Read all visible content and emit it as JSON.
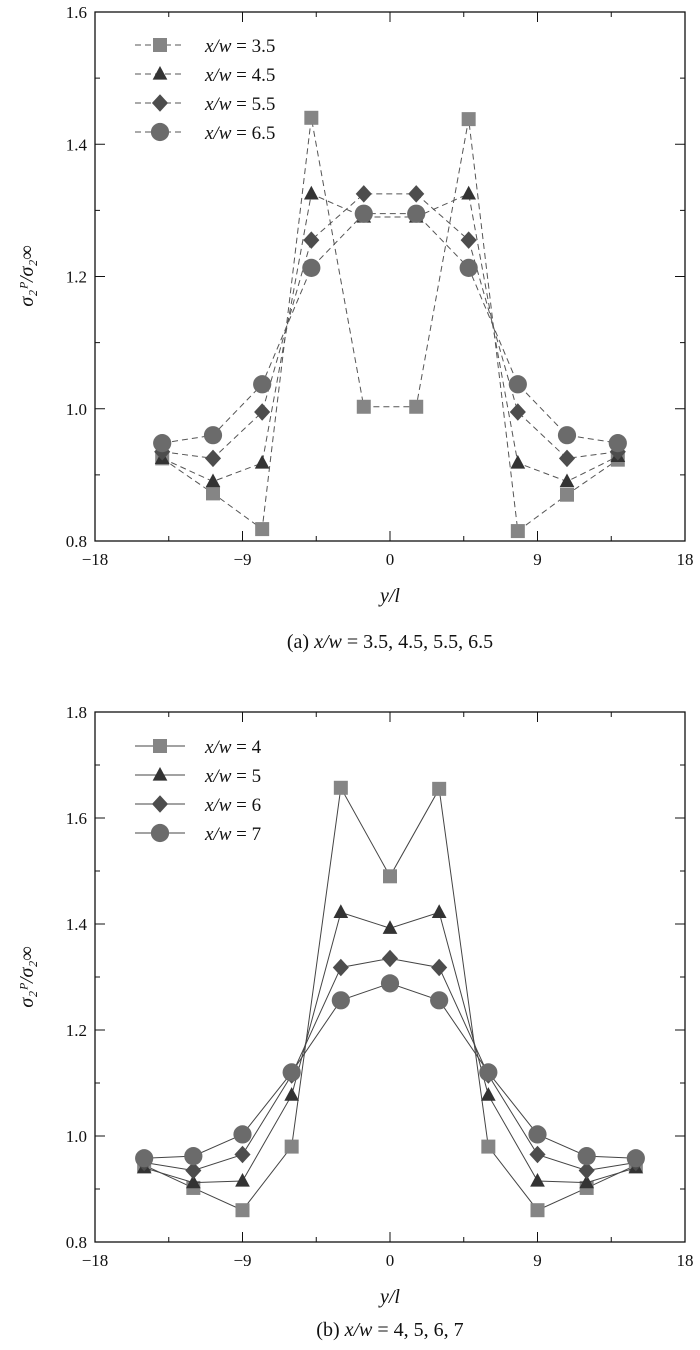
{
  "chart_data": [
    {
      "type": "line",
      "line_style": "dashed",
      "caption_label": "(a)",
      "caption_var": "x/w",
      "caption_values": " = 3.5, 4.5, 5.5, 6.5",
      "xlabel": "y/l",
      "ylabel": "σ₂ᴾ/σ₂∞",
      "xlim": [
        -18,
        18
      ],
      "ylim": [
        0.8,
        1.6
      ],
      "xticks": [
        -18,
        -9,
        0,
        9,
        18
      ],
      "xtick_labels": [
        "−18",
        "−9",
        "0",
        "9",
        "18"
      ],
      "yticks": [
        0.8,
        1.0,
        1.2,
        1.4,
        1.6
      ],
      "ytick_labels": [
        "0.8",
        "1.0",
        "1.2",
        "1.4",
        "1.6"
      ],
      "legend_position": "top-left",
      "series": [
        {
          "name": "x/w = 3.5",
          "label_var": "x/w",
          "label_value": " = 3.5",
          "marker": "square",
          "color": "#858585",
          "x": [
            -13.9,
            -10.8,
            -7.8,
            -4.8,
            -1.6,
            1.6,
            4.8,
            7.8,
            10.8,
            13.9
          ],
          "y": [
            0.925,
            0.872,
            0.818,
            1.44,
            1.003,
            1.003,
            1.438,
            0.815,
            0.87,
            0.923
          ]
        },
        {
          "name": "x/w = 4.5",
          "label_var": "x/w",
          "label_value": " = 4.5",
          "marker": "triangle",
          "color": "#333333",
          "x": [
            -13.9,
            -10.8,
            -7.8,
            -4.8,
            -1.6,
            1.6,
            4.8,
            7.8,
            10.8,
            13.9
          ],
          "y": [
            0.925,
            0.89,
            0.918,
            1.325,
            1.29,
            1.29,
            1.325,
            0.918,
            0.89,
            0.928
          ]
        },
        {
          "name": "x/w = 5.5",
          "label_var": "x/w",
          "label_value": " = 5.5",
          "marker": "diamond",
          "color": "#4d4d4d",
          "x": [
            -13.9,
            -10.8,
            -7.8,
            -4.8,
            -1.6,
            1.6,
            4.8,
            7.8,
            10.8,
            13.9
          ],
          "y": [
            0.935,
            0.925,
            0.995,
            1.255,
            1.325,
            1.325,
            1.255,
            0.995,
            0.925,
            0.935
          ]
        },
        {
          "name": "x/w = 6.5",
          "label_var": "x/w",
          "label_value": " = 6.5",
          "marker": "circle",
          "color": "#6b6b6b",
          "x": [
            -13.9,
            -10.8,
            -7.8,
            -4.8,
            -1.6,
            1.6,
            4.8,
            7.8,
            10.8,
            13.9
          ],
          "y": [
            0.948,
            0.96,
            1.037,
            1.213,
            1.295,
            1.295,
            1.213,
            1.037,
            0.96,
            0.948
          ]
        }
      ]
    },
    {
      "type": "line",
      "line_style": "solid",
      "caption_label": "(b)",
      "caption_var": "x/w",
      "caption_values": " = 4, 5, 6, 7",
      "xlabel": "y/l",
      "ylabel": "σ₂ᴾ/σ₂∞",
      "xlim": [
        -18,
        18
      ],
      "ylim": [
        0.8,
        1.8
      ],
      "xticks": [
        -18,
        -9,
        0,
        9,
        18
      ],
      "xtick_labels": [
        "−18",
        "−9",
        "0",
        "9",
        "18"
      ],
      "yticks": [
        0.8,
        1.0,
        1.2,
        1.4,
        1.6,
        1.8
      ],
      "ytick_labels": [
        "0.8",
        "1.0",
        "1.2",
        "1.4",
        "1.6",
        "1.8"
      ],
      "legend_position": "top-left",
      "series": [
        {
          "name": "x/w = 4",
          "label_var": "x/w",
          "label_value": " = 4",
          "marker": "square",
          "color": "#858585",
          "x": [
            -15,
            -12,
            -9,
            -6,
            -3,
            0,
            3,
            6,
            9,
            12,
            15
          ],
          "y": [
            0.945,
            0.902,
            0.86,
            0.98,
            1.657,
            1.49,
            1.655,
            0.98,
            0.86,
            0.902,
            0.945
          ]
        },
        {
          "name": "x/w = 5",
          "label_var": "x/w",
          "label_value": " = 5",
          "marker": "triangle",
          "color": "#333333",
          "x": [
            -15,
            -12,
            -9,
            -6,
            -3,
            0,
            3,
            6,
            9,
            12,
            15
          ],
          "y": [
            0.94,
            0.912,
            0.915,
            1.077,
            1.422,
            1.392,
            1.422,
            1.077,
            0.915,
            0.912,
            0.94
          ]
        },
        {
          "name": "x/w = 6",
          "label_var": "x/w",
          "label_value": " = 6",
          "marker": "diamond",
          "color": "#4d4d4d",
          "x": [
            -15,
            -12,
            -9,
            -6,
            -3,
            0,
            3,
            6,
            9,
            12,
            15
          ],
          "y": [
            0.95,
            0.935,
            0.965,
            1.115,
            1.318,
            1.335,
            1.318,
            1.115,
            0.965,
            0.935,
            0.95
          ]
        },
        {
          "name": "x/w = 7",
          "label_var": "x/w",
          "label_value": " = 7",
          "marker": "circle",
          "color": "#6b6b6b",
          "x": [
            -15,
            -12,
            -9,
            -6,
            -3,
            0,
            3,
            6,
            9,
            12,
            15
          ],
          "y": [
            0.958,
            0.962,
            1.003,
            1.12,
            1.256,
            1.288,
            1.256,
            1.12,
            1.003,
            0.962,
            0.958
          ]
        }
      ]
    }
  ]
}
